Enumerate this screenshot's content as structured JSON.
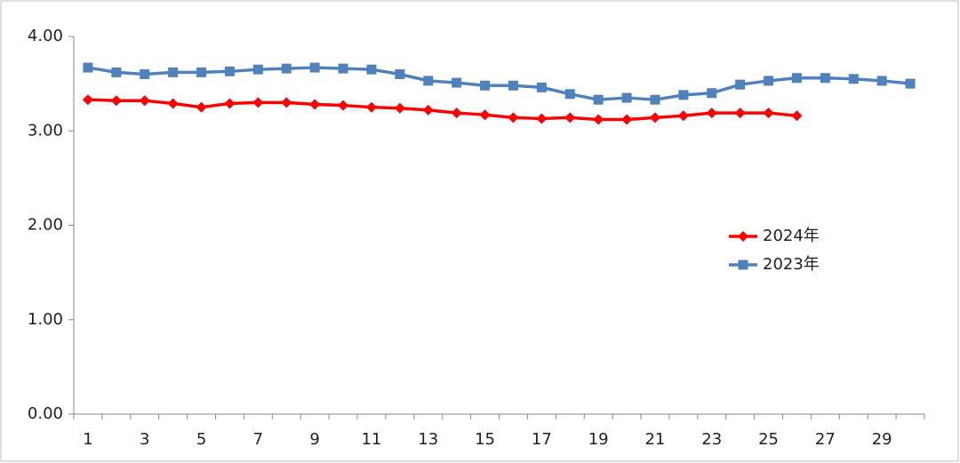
{
  "chart_data": {
    "type": "line",
    "categories": [
      1,
      null,
      3,
      null,
      5,
      null,
      7,
      null,
      9,
      null,
      11,
      null,
      13,
      null,
      15,
      null,
      17,
      null,
      19,
      null,
      21,
      null,
      23,
      null,
      25,
      null,
      27,
      null,
      29,
      null
    ],
    "series": [
      {
        "name": "2024年",
        "color": "#ff0000",
        "marker": "diamond",
        "values": [
          3.33,
          3.32,
          3.32,
          3.29,
          3.25,
          3.29,
          3.3,
          3.3,
          3.28,
          3.27,
          3.25,
          3.24,
          3.22,
          3.19,
          3.17,
          3.14,
          3.13,
          3.14,
          3.12,
          3.12,
          3.14,
          3.16,
          3.19,
          3.19,
          3.19,
          3.16,
          null,
          null,
          null,
          null
        ]
      },
      {
        "name": "2023年",
        "color": "#4f81bd",
        "marker": "square",
        "values": [
          3.67,
          3.62,
          3.6,
          3.62,
          3.62,
          3.63,
          3.65,
          3.66,
          3.67,
          3.66,
          3.65,
          3.6,
          3.53,
          3.51,
          3.48,
          3.48,
          3.46,
          3.39,
          3.33,
          3.35,
          3.33,
          3.38,
          3.4,
          3.49,
          3.53,
          3.56,
          3.56,
          3.55,
          3.53,
          3.5
        ]
      }
    ],
    "ylim": [
      0,
      4
    ],
    "yticks": [
      {
        "value": 0,
        "label": "0.00"
      },
      {
        "value": 1,
        "label": "1.00"
      },
      {
        "value": 2,
        "label": "2.00"
      },
      {
        "value": 3,
        "label": "3.00"
      },
      {
        "value": 4,
        "label": "4.00"
      }
    ],
    "grid": false,
    "legend": "right"
  }
}
